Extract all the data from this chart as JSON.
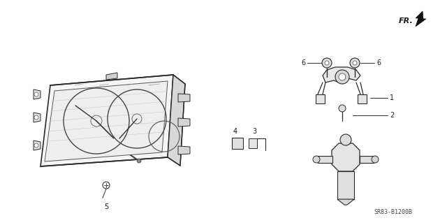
{
  "bg_color": "#ffffff",
  "line_color": "#2a2a2a",
  "text_color": "#1a1a1a",
  "fig_width": 6.4,
  "fig_height": 3.19,
  "dpi": 100,
  "part_number": "SR83-B1200B",
  "fr_label": "FR."
}
